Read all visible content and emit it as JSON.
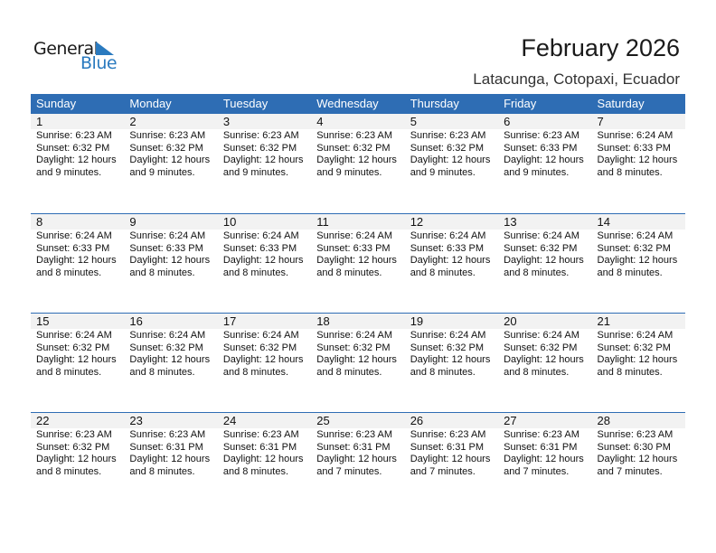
{
  "logo": {
    "word1": "General",
    "word2": "Blue",
    "color": "#2a7abf"
  },
  "header": {
    "title": "February 2026",
    "location": "Latacunga, Cotopaxi, Ecuador"
  },
  "colors": {
    "header_bg": "#2e6db4",
    "daynum_bg": "#f2f2f2"
  },
  "weekdays": [
    "Sunday",
    "Monday",
    "Tuesday",
    "Wednesday",
    "Thursday",
    "Friday",
    "Saturday"
  ],
  "weeks": [
    [
      {
        "day": "1",
        "sunrise": "Sunrise: 6:23 AM",
        "sunset": "Sunset: 6:32 PM",
        "daylight": "Daylight: 12 hours",
        "minutes": "and 9 minutes."
      },
      {
        "day": "2",
        "sunrise": "Sunrise: 6:23 AM",
        "sunset": "Sunset: 6:32 PM",
        "daylight": "Daylight: 12 hours",
        "minutes": "and 9 minutes."
      },
      {
        "day": "3",
        "sunrise": "Sunrise: 6:23 AM",
        "sunset": "Sunset: 6:32 PM",
        "daylight": "Daylight: 12 hours",
        "minutes": "and 9 minutes."
      },
      {
        "day": "4",
        "sunrise": "Sunrise: 6:23 AM",
        "sunset": "Sunset: 6:32 PM",
        "daylight": "Daylight: 12 hours",
        "minutes": "and 9 minutes."
      },
      {
        "day": "5",
        "sunrise": "Sunrise: 6:23 AM",
        "sunset": "Sunset: 6:32 PM",
        "daylight": "Daylight: 12 hours",
        "minutes": "and 9 minutes."
      },
      {
        "day": "6",
        "sunrise": "Sunrise: 6:23 AM",
        "sunset": "Sunset: 6:33 PM",
        "daylight": "Daylight: 12 hours",
        "minutes": "and 9 minutes."
      },
      {
        "day": "7",
        "sunrise": "Sunrise: 6:24 AM",
        "sunset": "Sunset: 6:33 PM",
        "daylight": "Daylight: 12 hours",
        "minutes": "and 8 minutes."
      }
    ],
    [
      {
        "day": "8",
        "sunrise": "Sunrise: 6:24 AM",
        "sunset": "Sunset: 6:33 PM",
        "daylight": "Daylight: 12 hours",
        "minutes": "and 8 minutes."
      },
      {
        "day": "9",
        "sunrise": "Sunrise: 6:24 AM",
        "sunset": "Sunset: 6:33 PM",
        "daylight": "Daylight: 12 hours",
        "minutes": "and 8 minutes."
      },
      {
        "day": "10",
        "sunrise": "Sunrise: 6:24 AM",
        "sunset": "Sunset: 6:33 PM",
        "daylight": "Daylight: 12 hours",
        "minutes": "and 8 minutes."
      },
      {
        "day": "11",
        "sunrise": "Sunrise: 6:24 AM",
        "sunset": "Sunset: 6:33 PM",
        "daylight": "Daylight: 12 hours",
        "minutes": "and 8 minutes."
      },
      {
        "day": "12",
        "sunrise": "Sunrise: 6:24 AM",
        "sunset": "Sunset: 6:33 PM",
        "daylight": "Daylight: 12 hours",
        "minutes": "and 8 minutes."
      },
      {
        "day": "13",
        "sunrise": "Sunrise: 6:24 AM",
        "sunset": "Sunset: 6:32 PM",
        "daylight": "Daylight: 12 hours",
        "minutes": "and 8 minutes."
      },
      {
        "day": "14",
        "sunrise": "Sunrise: 6:24 AM",
        "sunset": "Sunset: 6:32 PM",
        "daylight": "Daylight: 12 hours",
        "minutes": "and 8 minutes."
      }
    ],
    [
      {
        "day": "15",
        "sunrise": "Sunrise: 6:24 AM",
        "sunset": "Sunset: 6:32 PM",
        "daylight": "Daylight: 12 hours",
        "minutes": "and 8 minutes."
      },
      {
        "day": "16",
        "sunrise": "Sunrise: 6:24 AM",
        "sunset": "Sunset: 6:32 PM",
        "daylight": "Daylight: 12 hours",
        "minutes": "and 8 minutes."
      },
      {
        "day": "17",
        "sunrise": "Sunrise: 6:24 AM",
        "sunset": "Sunset: 6:32 PM",
        "daylight": "Daylight: 12 hours",
        "minutes": "and 8 minutes."
      },
      {
        "day": "18",
        "sunrise": "Sunrise: 6:24 AM",
        "sunset": "Sunset: 6:32 PM",
        "daylight": "Daylight: 12 hours",
        "minutes": "and 8 minutes."
      },
      {
        "day": "19",
        "sunrise": "Sunrise: 6:24 AM",
        "sunset": "Sunset: 6:32 PM",
        "daylight": "Daylight: 12 hours",
        "minutes": "and 8 minutes."
      },
      {
        "day": "20",
        "sunrise": "Sunrise: 6:24 AM",
        "sunset": "Sunset: 6:32 PM",
        "daylight": "Daylight: 12 hours",
        "minutes": "and 8 minutes."
      },
      {
        "day": "21",
        "sunrise": "Sunrise: 6:24 AM",
        "sunset": "Sunset: 6:32 PM",
        "daylight": "Daylight: 12 hours",
        "minutes": "and 8 minutes."
      }
    ],
    [
      {
        "day": "22",
        "sunrise": "Sunrise: 6:23 AM",
        "sunset": "Sunset: 6:32 PM",
        "daylight": "Daylight: 12 hours",
        "minutes": "and 8 minutes."
      },
      {
        "day": "23",
        "sunrise": "Sunrise: 6:23 AM",
        "sunset": "Sunset: 6:31 PM",
        "daylight": "Daylight: 12 hours",
        "minutes": "and 8 minutes."
      },
      {
        "day": "24",
        "sunrise": "Sunrise: 6:23 AM",
        "sunset": "Sunset: 6:31 PM",
        "daylight": "Daylight: 12 hours",
        "minutes": "and 8 minutes."
      },
      {
        "day": "25",
        "sunrise": "Sunrise: 6:23 AM",
        "sunset": "Sunset: 6:31 PM",
        "daylight": "Daylight: 12 hours",
        "minutes": "and 7 minutes."
      },
      {
        "day": "26",
        "sunrise": "Sunrise: 6:23 AM",
        "sunset": "Sunset: 6:31 PM",
        "daylight": "Daylight: 12 hours",
        "minutes": "and 7 minutes."
      },
      {
        "day": "27",
        "sunrise": "Sunrise: 6:23 AM",
        "sunset": "Sunset: 6:31 PM",
        "daylight": "Daylight: 12 hours",
        "minutes": "and 7 minutes."
      },
      {
        "day": "28",
        "sunrise": "Sunrise: 6:23 AM",
        "sunset": "Sunset: 6:30 PM",
        "daylight": "Daylight: 12 hours",
        "minutes": "and 7 minutes."
      }
    ]
  ]
}
